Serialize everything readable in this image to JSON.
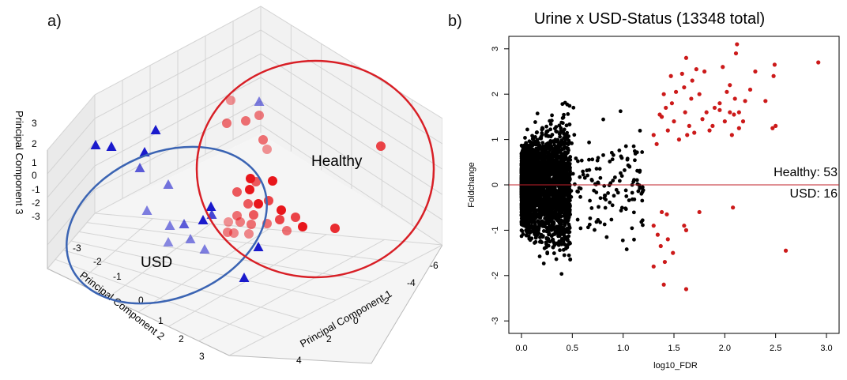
{
  "panel_a": {
    "letter": "a)",
    "chart_data": {
      "type": "scatter",
      "title": "",
      "xlabel": "Principal Component 1",
      "ylabel": "Principal Component 2",
      "zlabel": "Principal Component 3",
      "x_ticks": [
        "4",
        "2",
        "0",
        "-2",
        "-4",
        "-6"
      ],
      "y_ticks": [
        "-3",
        "-2",
        "-1",
        "0",
        "1",
        "2",
        "3"
      ],
      "z_ticks": [
        "3",
        "2",
        "1",
        "0",
        "-1",
        "-2",
        "-3"
      ],
      "grid": true,
      "series": [
        {
          "name": "USD",
          "marker": "triangle",
          "color": "#1a1acc",
          "points": 18
        },
        {
          "name": "Healthy",
          "marker": "circle",
          "color": "#e8161b",
          "points": 30
        }
      ],
      "annotations": [
        {
          "text": "USD",
          "ellipse_color": "#3b64b3"
        },
        {
          "text": "Healthy",
          "ellipse_color": "#d81f26"
        }
      ]
    }
  },
  "panel_b": {
    "letter": "b)",
    "chart_data": {
      "type": "scatter",
      "title": "Urine x USD-Status (13348 total)",
      "xlabel": "log10_FDR",
      "ylabel": "Foldchange",
      "xlim": [
        -0.1,
        3.1
      ],
      "ylim": [
        -3.2,
        3.2
      ],
      "x_ticks": [
        "0.0",
        "0.5",
        "1.0",
        "1.5",
        "2.0",
        "2.5",
        "3.0"
      ],
      "y_ticks": [
        "3",
        "2",
        "1",
        "0",
        "-1",
        "-2",
        "-3"
      ],
      "reference_line": {
        "y": 0,
        "color": "#c0202a"
      },
      "grid": false,
      "annotations": [
        "Healthy: 53",
        "USD: 16"
      ],
      "significant_color": "#cc1a1a",
      "nonsignificant_color": "#000000",
      "significant_points": [
        [
          1.3,
          1.1
        ],
        [
          1.33,
          0.9
        ],
        [
          1.38,
          1.5
        ],
        [
          1.4,
          2.0
        ],
        [
          1.42,
          1.7
        ],
        [
          1.47,
          2.4
        ],
        [
          1.5,
          1.4
        ],
        [
          1.55,
          1.0
        ],
        [
          1.61,
          1.6
        ],
        [
          1.62,
          2.8
        ],
        [
          1.63,
          1.1
        ],
        [
          1.65,
          1.3
        ],
        [
          1.68,
          2.3
        ],
        [
          1.75,
          2.0
        ],
        [
          1.8,
          2.5
        ],
        [
          1.85,
          1.2
        ],
        [
          1.9,
          1.7
        ],
        [
          1.95,
          1.8
        ],
        [
          2.0,
          1.4
        ],
        [
          2.05,
          2.2
        ],
        [
          2.07,
          1.1
        ],
        [
          2.1,
          1.9
        ],
        [
          2.11,
          2.9
        ],
        [
          2.12,
          3.1
        ],
        [
          2.14,
          1.6
        ],
        [
          2.18,
          1.4
        ],
        [
          2.25,
          2.1
        ],
        [
          2.47,
          1.25
        ],
        [
          2.48,
          2.4
        ],
        [
          2.49,
          2.65
        ],
        [
          2.5,
          1.3
        ],
        [
          2.92,
          2.7
        ],
        [
          1.82,
          1.6
        ],
        [
          2.02,
          2.05
        ],
        [
          1.95,
          1.65
        ],
        [
          2.09,
          1.55
        ],
        [
          1.67,
          1.9
        ],
        [
          1.58,
          2.45
        ],
        [
          1.48,
          1.8
        ],
        [
          1.36,
          1.55
        ],
        [
          2.14,
          1.25
        ],
        [
          1.72,
          2.55
        ],
        [
          2.3,
          2.5
        ],
        [
          1.6,
          2.15
        ],
        [
          1.44,
          1.2
        ],
        [
          1.88,
          1.3
        ],
        [
          2.05,
          1.6
        ],
        [
          1.98,
          2.6
        ],
        [
          2.2,
          1.85
        ],
        [
          1.78,
          1.45
        ],
        [
          1.52,
          2.05
        ],
        [
          1.7,
          1.15
        ],
        [
          2.4,
          1.85
        ],
        [
          1.38,
          -0.6
        ],
        [
          1.43,
          -0.65
        ],
        [
          1.3,
          -0.9
        ],
        [
          1.34,
          -1.1
        ],
        [
          1.44,
          -1.2
        ],
        [
          1.6,
          -0.9
        ],
        [
          1.62,
          -1.0
        ],
        [
          1.75,
          -0.6
        ],
        [
          2.08,
          -0.5
        ],
        [
          1.37,
          -1.35
        ],
        [
          1.41,
          -1.7
        ],
        [
          1.3,
          -1.8
        ],
        [
          1.4,
          -2.2
        ],
        [
          1.62,
          -2.3
        ],
        [
          2.6,
          -1.45
        ],
        [
          1.49,
          -1.5
        ]
      ]
    }
  }
}
